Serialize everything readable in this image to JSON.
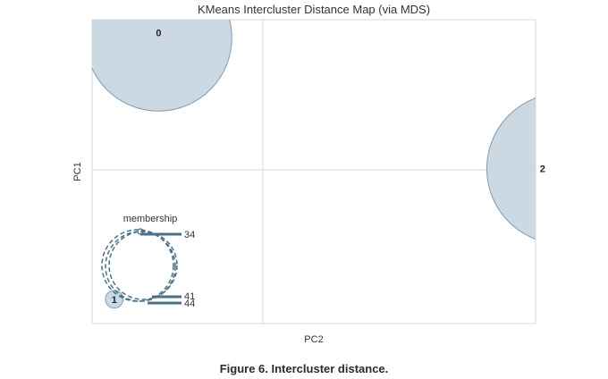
{
  "chart_data": {
    "type": "scatter",
    "title": "KMeans Intercluster Distance Map (via MDS)",
    "xlabel": "PC2",
    "ylabel": "PC1",
    "xlim": [
      -1,
      1
    ],
    "ylim": [
      -1,
      1
    ],
    "grid": true,
    "clusters": [
      {
        "label": "0",
        "x": -0.7,
        "y": 0.88,
        "size": 0.33
      },
      {
        "label": "1",
        "x": -0.9,
        "y": -0.84,
        "size": 0.04
      },
      {
        "label": "2",
        "x": 1.12,
        "y": 0.02,
        "size": 0.34
      }
    ],
    "legend": {
      "title": "membership",
      "values": [
        "34",
        "41",
        "44"
      ]
    },
    "colors": {
      "fill": "#c9d6e0",
      "edge": "#7f9bb2",
      "legend": "#4a7088"
    }
  },
  "caption": "Figure 6. Intercluster distance."
}
